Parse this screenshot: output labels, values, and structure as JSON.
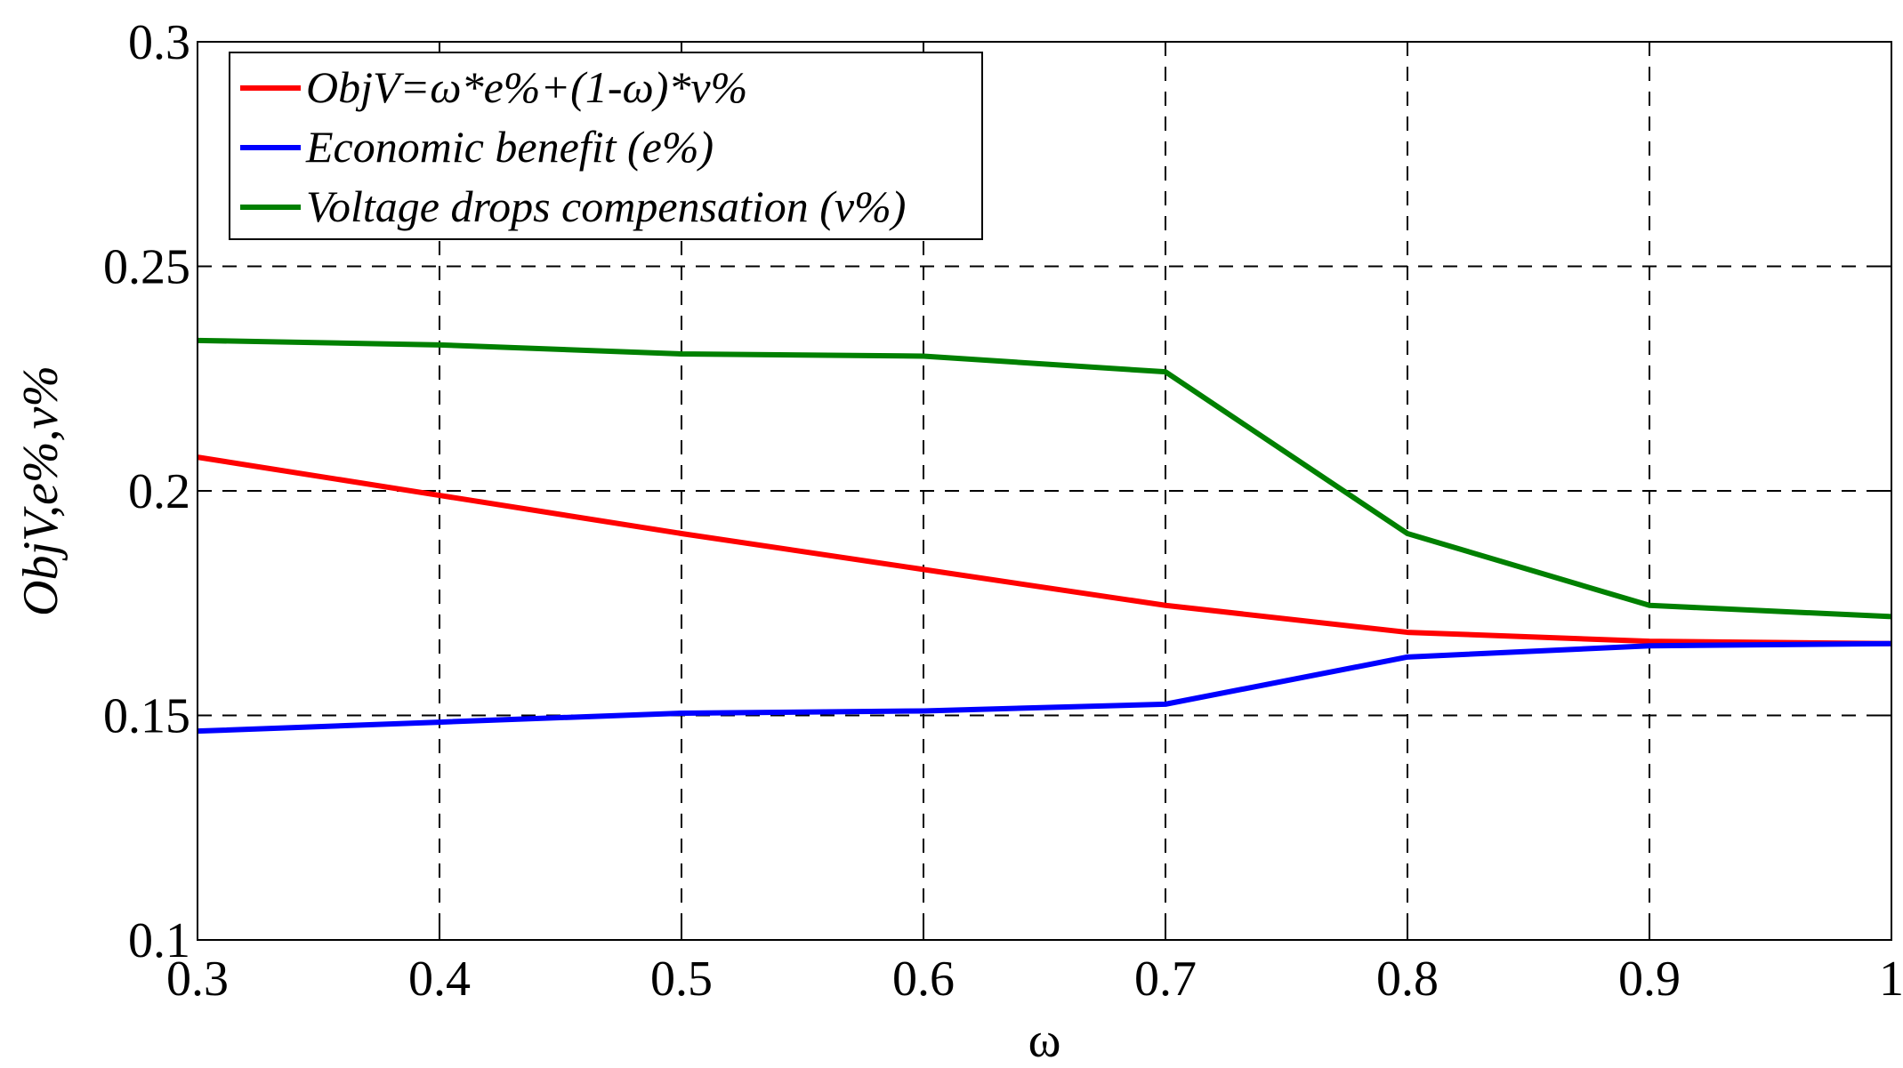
{
  "chart_data": {
    "type": "line",
    "title": "",
    "xlabel": "ω",
    "ylabel": "ObjV,e%,v%",
    "xlim": [
      0.3,
      1.0
    ],
    "ylim": [
      0.1,
      0.3
    ],
    "grid": true,
    "legend_position": "top-left",
    "x": [
      0.3,
      0.4,
      0.5,
      0.6,
      0.7,
      0.8,
      0.9,
      1.0
    ],
    "x_ticks": [
      0.3,
      0.4,
      0.5,
      0.6,
      0.7,
      0.8,
      0.9,
      1.0
    ],
    "x_tick_labels": [
      "0.3",
      "0.4",
      "0.5",
      "0.6",
      "0.7",
      "0.8",
      "0.9",
      "1"
    ],
    "y_ticks": [
      0.1,
      0.15,
      0.2,
      0.25,
      0.3
    ],
    "y_tick_labels": [
      "0.1",
      "0.15",
      "0.2",
      "0.25",
      "0.3"
    ],
    "series": [
      {
        "name": "ObjV=ω*e%+(1-ω)*v%",
        "color": "#ff0000",
        "values": [
          0.2075,
          0.199,
          0.1905,
          0.1825,
          0.1745,
          0.1685,
          0.1665,
          0.166
        ]
      },
      {
        "name": "Economic benefit (e%)",
        "color": "#0000ff",
        "values": [
          0.1465,
          0.1485,
          0.1505,
          0.151,
          0.1525,
          0.163,
          0.1655,
          0.166
        ]
      },
      {
        "name": "Voltage drops compensation (v%)",
        "color": "#008000",
        "values": [
          0.2335,
          0.2325,
          0.2305,
          0.23,
          0.2265,
          0.1905,
          0.1745,
          0.172
        ]
      }
    ]
  }
}
